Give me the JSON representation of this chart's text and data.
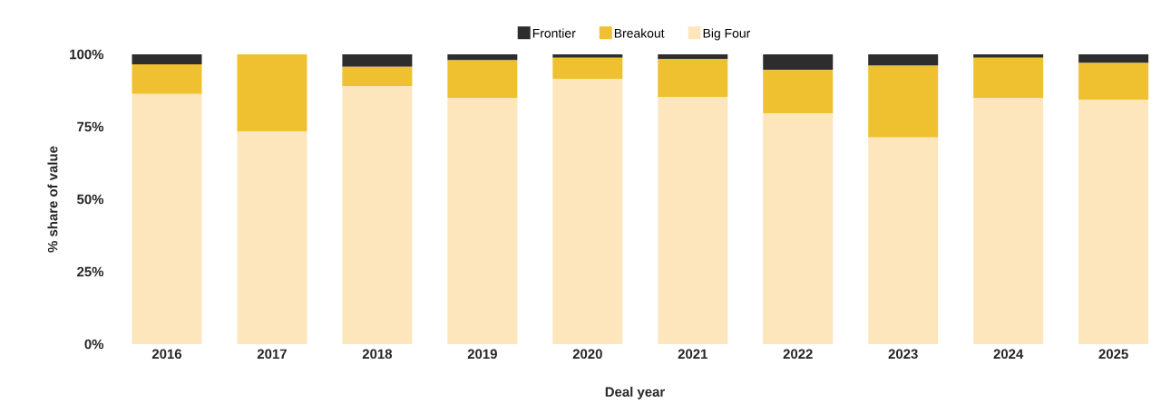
{
  "chart_data": {
    "type": "bar",
    "stacked": true,
    "xlabel": "Deal year",
    "ylabel": "% share of value",
    "categories": [
      "2016",
      "2017",
      "2018",
      "2019",
      "2020",
      "2021",
      "2022",
      "2023",
      "2024",
      "2025"
    ],
    "series": [
      {
        "name": "Big Four",
        "color": "#fde6bc",
        "values": [
          86.3,
          73.4,
          89.1,
          85.0,
          91.6,
          85.3,
          79.7,
          71.3,
          85.0,
          84.4
        ]
      },
      {
        "name": "Breakout",
        "color": "#efc030",
        "values": [
          10.3,
          26.6,
          6.6,
          13.0,
          7.2,
          13.1,
          14.9,
          24.8,
          13.8,
          12.6
        ]
      },
      {
        "name": "Frontier",
        "color": "#2d2d2d",
        "values": [
          3.4,
          0,
          4.4,
          2.0,
          1.2,
          1.6,
          5.4,
          3.9,
          1.2,
          3.0
        ]
      }
    ],
    "ylim": [
      0,
      100
    ],
    "yticks": [
      {
        "value": 0,
        "label": "0%"
      },
      {
        "value": 25,
        "label": "25%"
      },
      {
        "value": 50,
        "label": "50%"
      },
      {
        "value": 75,
        "label": "75%"
      },
      {
        "value": 100,
        "label": "100%"
      }
    ],
    "legend": "top",
    "grid": false
  }
}
